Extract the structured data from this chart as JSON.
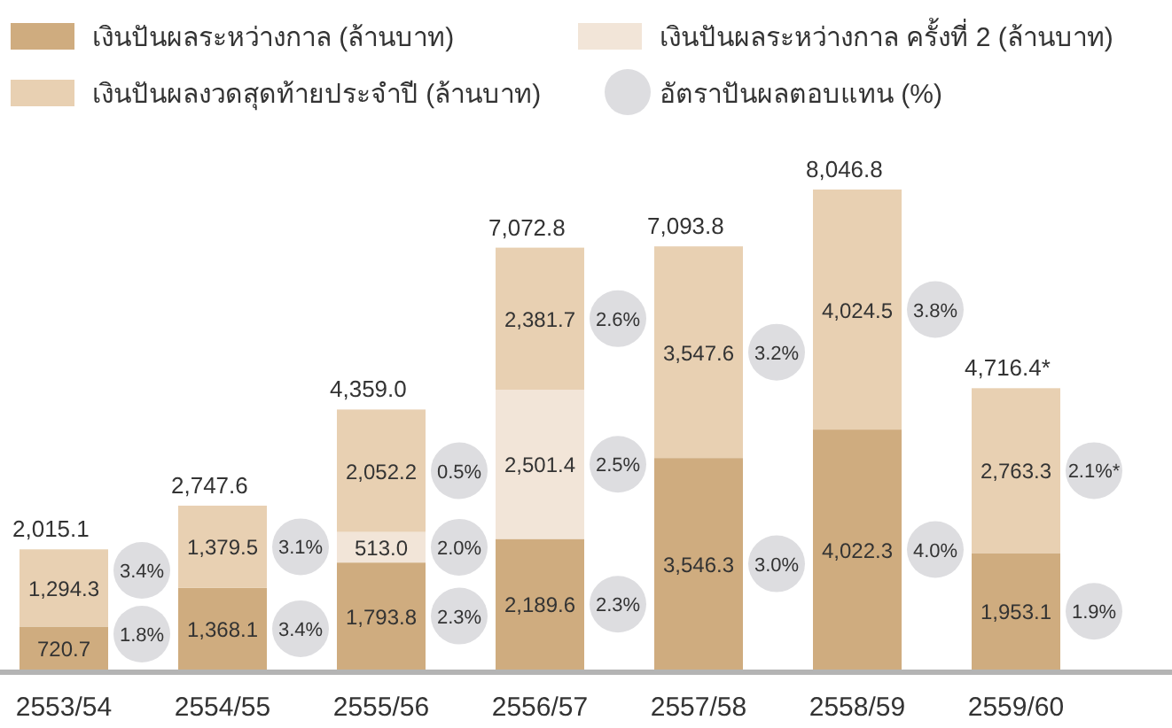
{
  "chart_data": {
    "type": "bar",
    "stacked": true,
    "legend": "top",
    "data_labels": false,
    "categories": [
      "2553/54",
      "2554/55",
      "2555/56",
      "2556/57",
      "2557/58",
      "2558/59",
      "2559/60"
    ],
    "series": [
      {
        "name": "เงินปันผลระหว่างกาล (ล้านบาท)",
        "color": "#cfac7f",
        "values": [
          720.7,
          1368.1,
          1793.8,
          2189.6,
          3546.3,
          4022.3,
          1953.1
        ],
        "value_labels": [
          "720.7",
          "1,368.1",
          "1,793.8",
          "2,189.6",
          "3,546.3",
          "4,022.3",
          "1,953.1"
        ]
      },
      {
        "name": "เงินปันผลระหว่างกาล ครั้งที่ 2 (ล้านบาท)",
        "color": "#f2e5d8",
        "values": [
          null,
          null,
          513.0,
          2501.4,
          null,
          null,
          null
        ],
        "value_labels": [
          null,
          null,
          "513.0",
          "2,501.4",
          null,
          null,
          null
        ]
      },
      {
        "name": "เงินปันผลงวดสุดท้ายประจำปี (ล้านบาท)",
        "color": "#e8d0b2",
        "values": [
          1294.3,
          1379.5,
          2052.2,
          2381.7,
          3547.6,
          4024.5,
          2763.3
        ],
        "value_labels": [
          "1,294.3",
          "1,379.5",
          "2,052.2",
          "2,381.7",
          "3,547.6",
          "4,024.5",
          "2,763.3"
        ]
      },
      {
        "name": "อัตราปันผลตอบแทน (%)",
        "color": "#dddde0",
        "type": "scatter",
        "values": [
          null,
          null,
          null,
          null,
          null,
          null,
          null
        ]
      }
    ],
    "totals": [
      "2,015.1",
      "2,747.6",
      "4,359.0",
      "7,072.8",
      "7,093.8",
      "8,046.8",
      "4,716.4*"
    ],
    "annotations": [
      "1.8%",
      "3.4%",
      "3.4%",
      "3.1%",
      "2.3%",
      "2.0%",
      "0.5%",
      "2.3%",
      "2.5%",
      "2.6%",
      "3.0%",
      "3.2%",
      "4.0%",
      "3.8%",
      "1.9%",
      "2.1%*"
    ]
  }
}
